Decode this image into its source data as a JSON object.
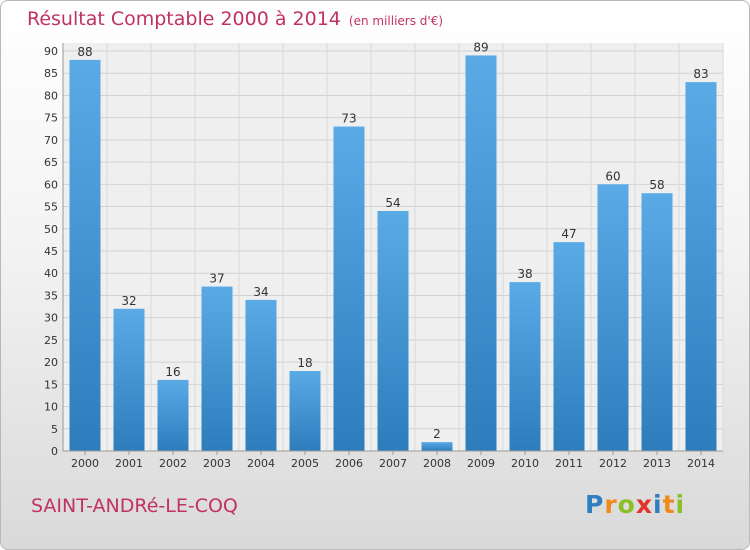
{
  "header": {
    "title": "Résultat Comptable 2000 à 2014",
    "subtitle": "(en milliers d'€)"
  },
  "footer": {
    "commune": "SAINT-ANDRé-LE-COQ",
    "logo": "Proxiti"
  },
  "colors": {
    "title": "#c1325f",
    "bar_light": "#5aaae6",
    "bar_dark": "#2d7dbd"
  },
  "chart_data": {
    "type": "bar",
    "title": "Résultat Comptable 2000 à 2014",
    "subtitle": "(en milliers d'€)",
    "categories": [
      "2000",
      "2001",
      "2002",
      "2003",
      "2004",
      "2005",
      "2006",
      "2007",
      "2008",
      "2009",
      "2010",
      "2011",
      "2012",
      "2013",
      "2014"
    ],
    "values": [
      88,
      32,
      16,
      37,
      34,
      18,
      73,
      54,
      2,
      89,
      38,
      47,
      60,
      58,
      83
    ],
    "ylim": [
      0,
      90
    ],
    "yticks": [
      0,
      5,
      10,
      15,
      20,
      25,
      30,
      35,
      40,
      45,
      50,
      55,
      60,
      65,
      70,
      75,
      80,
      85,
      90
    ],
    "grid": true,
    "data_labels": true
  }
}
